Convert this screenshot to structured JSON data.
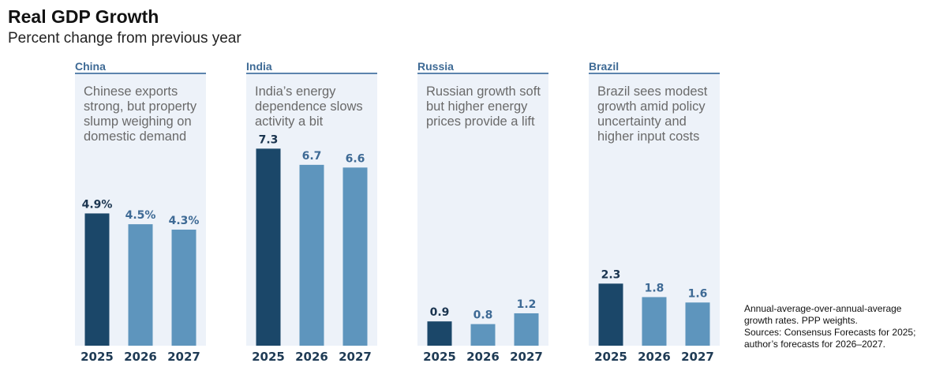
{
  "title": "Real GDP Growth",
  "subtitle": "Percent change from previous year",
  "colors": {
    "panel_bg": "#edf2f9",
    "panel_rule": "#5c84ad",
    "header_text": "#3e6a95",
    "desc_text": "#6a6a6a",
    "bar_first": "#1b4769",
    "bar_rest": "#5e95bd",
    "label_first": "#1b3550",
    "label_rest": "#3e6a95",
    "axis_text": "#1f3b55"
  },
  "footnote": {
    "line1": "Annual-average-over-annual-average",
    "line2": "growth rates. PPP weights.",
    "line3": "Sources: Consensus Forecasts for 2025;",
    "line4": "author’s forecasts for 2026–2027."
  },
  "chart_data": [
    {
      "type": "bar",
      "title": "China",
      "description": [
        "Chinese exports",
        "strong, but property",
        "slump weighing on",
        "domestic demand"
      ],
      "categories": [
        "2025",
        "2026",
        "2027"
      ],
      "values": [
        4.9,
        4.5,
        4.3
      ],
      "value_labels": [
        "4.9%",
        "4.5%",
        "4.3%"
      ],
      "ylim": [
        0,
        10
      ]
    },
    {
      "type": "bar",
      "title": "India",
      "description": [
        "India’s energy",
        "dependence slows",
        "activity a bit"
      ],
      "categories": [
        "2025",
        "2026",
        "2027"
      ],
      "values": [
        7.3,
        6.7,
        6.6
      ],
      "value_labels": [
        "7.3",
        "6.7",
        "6.6"
      ],
      "ylim": [
        0,
        10
      ]
    },
    {
      "type": "bar",
      "title": "Russia",
      "description": [
        "Russian growth soft",
        "but higher energy",
        "prices provide a lift"
      ],
      "categories": [
        "2025",
        "2026",
        "2027"
      ],
      "values": [
        0.9,
        0.8,
        1.2
      ],
      "value_labels": [
        "0.9",
        "0.8",
        "1.2"
      ],
      "ylim": [
        0,
        10
      ]
    },
    {
      "type": "bar",
      "title": "Brazil",
      "description": [
        "Brazil sees modest",
        "growth amid policy",
        "uncertainty and",
        "higher input costs"
      ],
      "categories": [
        "2025",
        "2026",
        "2027"
      ],
      "values": [
        2.3,
        1.8,
        1.6
      ],
      "value_labels": [
        "2.3",
        "1.8",
        "1.6"
      ],
      "ylim": [
        0,
        10
      ]
    }
  ]
}
